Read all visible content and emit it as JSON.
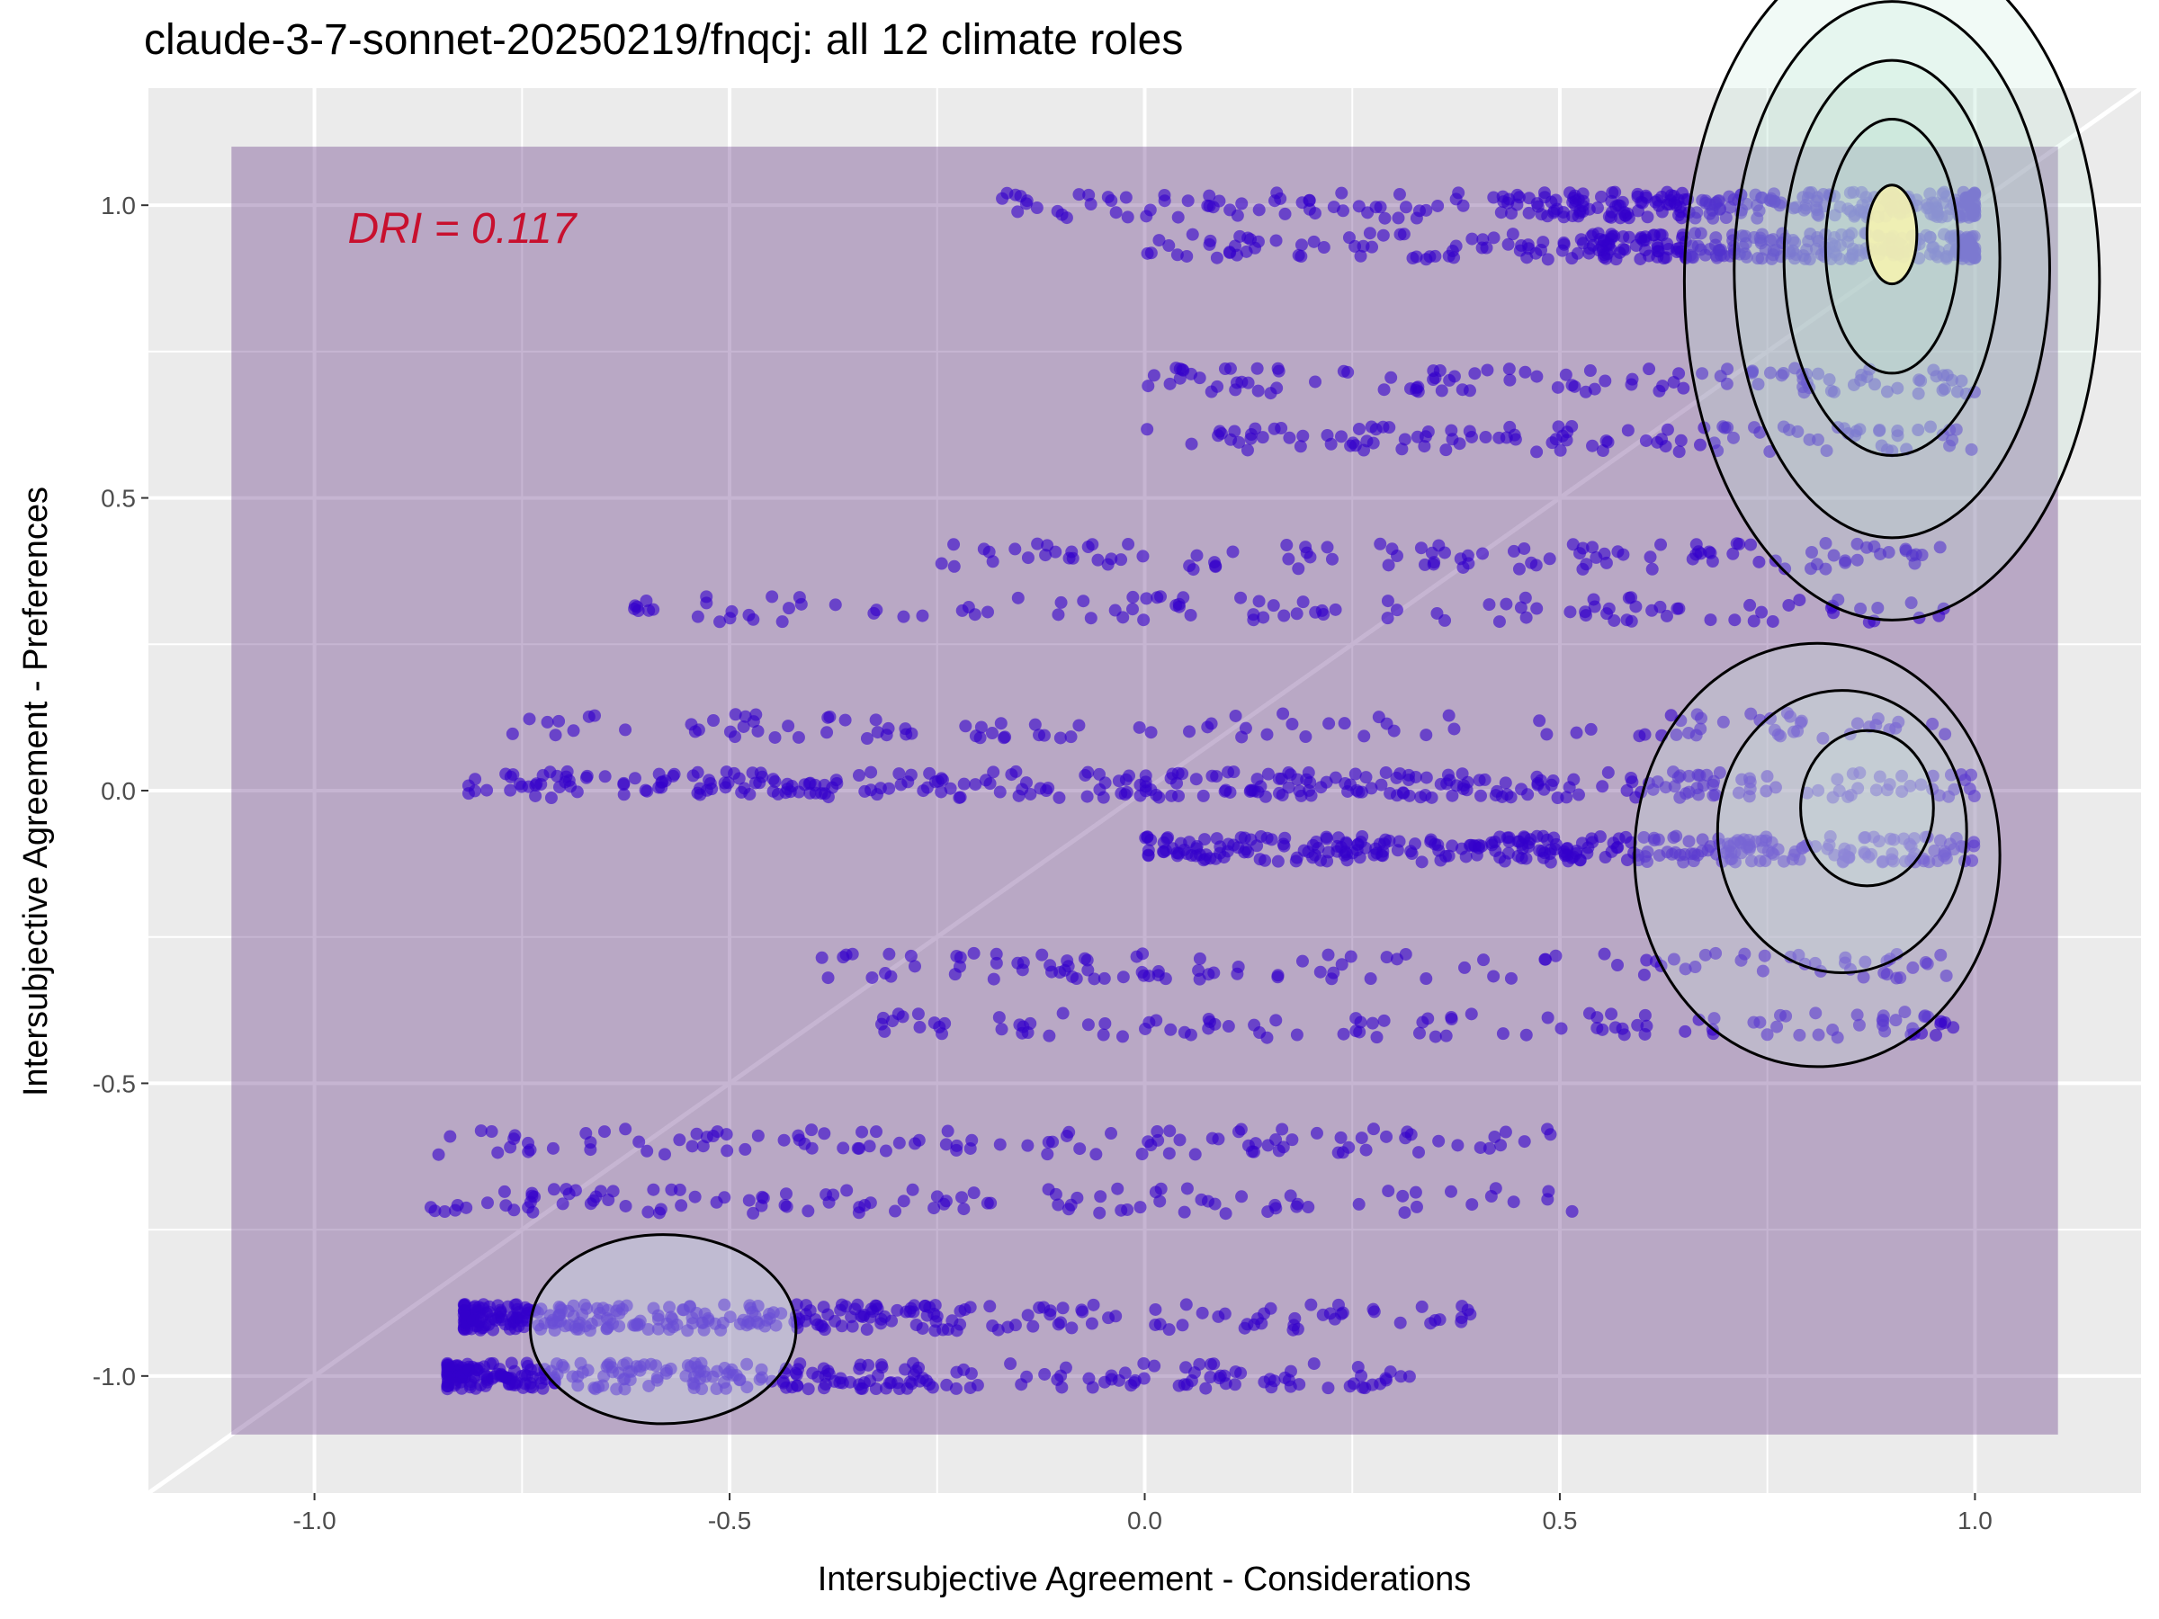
{
  "chart_data": {
    "type": "scatter",
    "title": "claude-3-7-sonnet-20250219/fnqcj: all 12 climate roles",
    "xlabel": "Intersubjective Agreement - Considerations",
    "ylabel": "Intersubjective Agreement - Preferences",
    "xlim": [
      -1.2,
      1.2
    ],
    "ylim": [
      -1.2,
      1.2
    ],
    "x_ticks": [
      -1.0,
      -0.5,
      0.0,
      0.5,
      1.0
    ],
    "x_tick_labels": [
      "-1.0",
      "-0.5",
      "0.0",
      "0.5",
      "1.0"
    ],
    "y_ticks": [
      -1.0,
      -0.5,
      0.0,
      0.5,
      1.0
    ],
    "y_tick_labels": [
      "-1.0",
      "-0.5",
      "0.0",
      "0.5",
      "1.0"
    ],
    "grid": true,
    "diagonal_reference_line": true,
    "annotation": {
      "text": "DRI = 0.117",
      "x": -0.96,
      "y": 0.96,
      "color": "#c8102e"
    },
    "shaded_region": {
      "x": [
        -1.1,
        1.1
      ],
      "y": [
        -1.1,
        1.1
      ],
      "color": "#5b2a7e"
    },
    "point_color": "#3300cc",
    "point_clusters": [
      {
        "y": 1.0,
        "x_range": [
          -0.18,
          1.0
        ],
        "density": "high"
      },
      {
        "y": 0.93,
        "x_range": [
          0.0,
          1.0
        ],
        "density": "high"
      },
      {
        "y": 0.7,
        "x_range": [
          0.0,
          1.0
        ],
        "density": "medium"
      },
      {
        "y": 0.6,
        "x_range": [
          0.0,
          1.0
        ],
        "density": "medium"
      },
      {
        "y": 0.4,
        "x_range": [
          -0.25,
          0.97
        ],
        "density": "medium"
      },
      {
        "y": 0.31,
        "x_range": [
          -0.62,
          0.97
        ],
        "density": "medium"
      },
      {
        "y": 0.11,
        "x_range": [
          -0.77,
          0.97
        ],
        "density": "medium"
      },
      {
        "y": 0.01,
        "x_range": [
          -0.82,
          1.0
        ],
        "density": "high"
      },
      {
        "y": -0.1,
        "x_range": [
          0.0,
          1.0
        ],
        "density": "high"
      },
      {
        "y": -0.3,
        "x_range": [
          -0.4,
          0.98
        ],
        "density": "medium"
      },
      {
        "y": -0.4,
        "x_range": [
          -0.33,
          0.98
        ],
        "density": "medium"
      },
      {
        "y": -0.6,
        "x_range": [
          -0.86,
          0.5
        ],
        "density": "medium"
      },
      {
        "y": -0.7,
        "x_range": [
          -0.87,
          0.53
        ],
        "density": "medium"
      },
      {
        "y": -0.9,
        "x_range": [
          -0.82,
          0.4
        ],
        "density": "high"
      },
      {
        "y": -1.0,
        "x_range": [
          -0.84,
          0.32
        ],
        "density": "high"
      }
    ],
    "density_peaks": [
      {
        "x": 0.9,
        "y": 0.95
      },
      {
        "x": 0.87,
        "y": -0.03
      },
      {
        "x": -0.58,
        "y": -0.92
      }
    ]
  }
}
